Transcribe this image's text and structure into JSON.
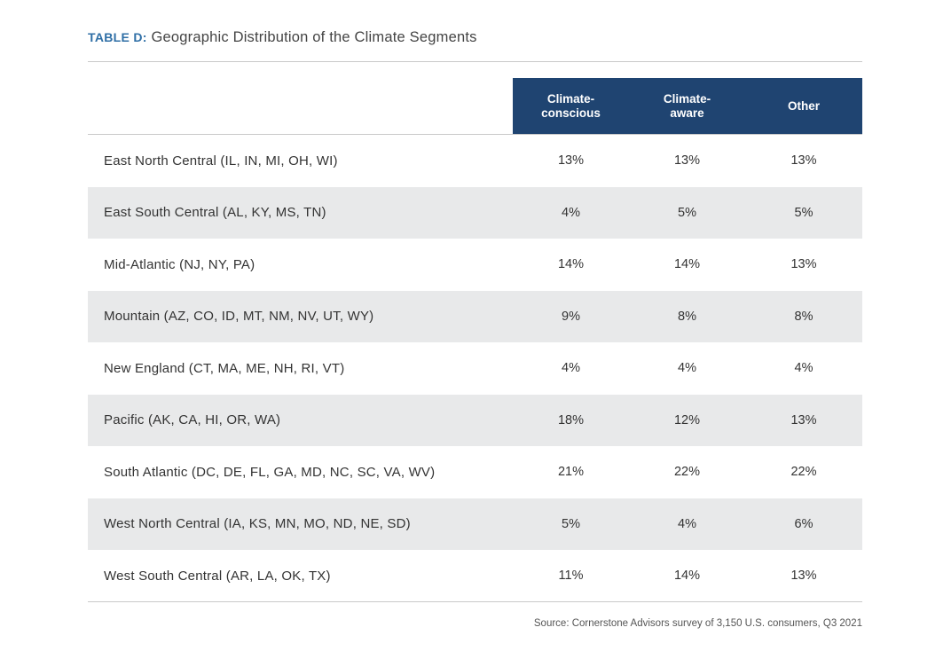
{
  "title": {
    "prefix": "TABLE D:",
    "text": "Geographic Distribution of the Climate Segments"
  },
  "table": {
    "columns": [
      "Climate-\nconscious",
      "Climate-\naware",
      "Other"
    ],
    "rows": [
      {
        "region": "East North Central (IL, IN, MI, OH, WI)",
        "values": [
          "13%",
          "13%",
          "13%"
        ]
      },
      {
        "region": "East South Central (AL, KY, MS, TN)",
        "values": [
          "4%",
          "5%",
          "5%"
        ]
      },
      {
        "region": "Mid-Atlantic (NJ, NY, PA)",
        "values": [
          "14%",
          "14%",
          "13%"
        ]
      },
      {
        "region": "Mountain (AZ, CO, ID, MT, NM, NV, UT, WY)",
        "values": [
          "9%",
          "8%",
          "8%"
        ]
      },
      {
        "region": "New England (CT, MA, ME, NH, RI, VT)",
        "values": [
          "4%",
          "4%",
          "4%"
        ]
      },
      {
        "region": "Pacific (AK, CA, HI, OR, WA)",
        "values": [
          "18%",
          "12%",
          "13%"
        ]
      },
      {
        "region": "South Atlantic (DC, DE, FL, GA, MD, NC, SC, VA, WV)",
        "values": [
          "21%",
          "22%",
          "22%"
        ]
      },
      {
        "region": "West North Central (IA, KS, MN, MO, ND, NE, SD)",
        "values": [
          "5%",
          "4%",
          "6%"
        ]
      },
      {
        "region": "West South Central (AR, LA, OK, TX)",
        "values": [
          "11%",
          "14%",
          "13%"
        ]
      }
    ]
  },
  "source": "Source: Cornerstone Advisors survey of 3,150 U.S. consumers, Q3 2021",
  "colors": {
    "header_bg": "#1f4471",
    "title_accent": "#2f6fa6",
    "row_shade": "#e8e9ea"
  }
}
